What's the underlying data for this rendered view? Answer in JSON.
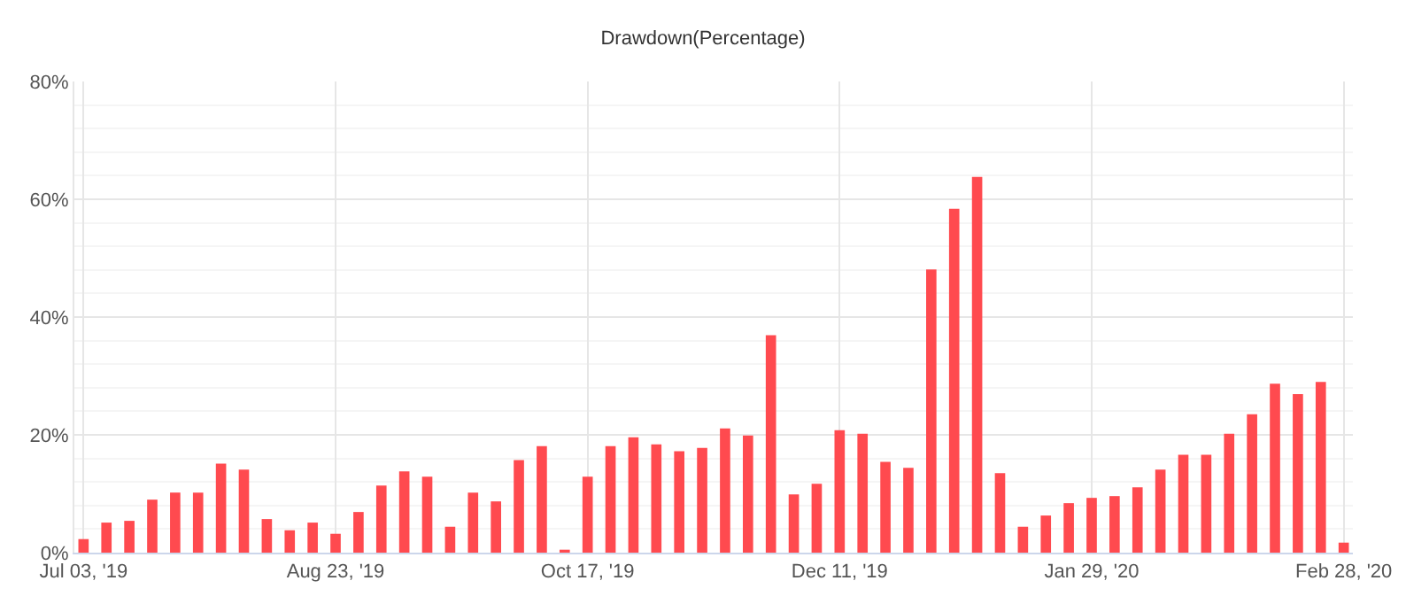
{
  "chart_data": {
    "type": "bar",
    "title": "Drawdown(Percentage)",
    "categories": [
      "Jul 03, '19",
      null,
      null,
      null,
      null,
      null,
      null,
      null,
      null,
      null,
      null,
      "Aug 23, '19",
      null,
      null,
      null,
      null,
      null,
      null,
      null,
      null,
      null,
      null,
      "Oct 17, '19",
      null,
      null,
      null,
      null,
      null,
      null,
      null,
      null,
      null,
      null,
      "Dec 11, '19",
      null,
      null,
      null,
      null,
      null,
      null,
      null,
      null,
      null,
      null,
      "Jan 29, '20",
      null,
      null,
      null,
      null,
      null,
      null,
      null,
      null,
      null,
      null,
      "Feb 28, '20"
    ],
    "values": [
      2.3,
      5.1,
      5.4,
      9.0,
      10.2,
      10.2,
      15.1,
      14.1,
      5.7,
      3.8,
      5.1,
      3.2,
      6.9,
      11.4,
      13.8,
      12.9,
      4.4,
      10.2,
      8.7,
      15.7,
      18.1,
      0.5,
      12.9,
      18.1,
      19.6,
      18.4,
      17.2,
      17.8,
      21.1,
      19.9,
      36.9,
      9.9,
      11.7,
      20.8,
      20.2,
      15.4,
      14.4,
      48.1,
      58.4,
      63.8,
      13.5,
      4.4,
      6.3,
      8.4,
      9.3,
      9.6,
      11.1,
      14.1,
      16.6,
      16.6,
      20.2,
      23.5,
      28.7,
      26.9,
      29.0,
      1.7
    ],
    "color": "#ff4a4f",
    "ylim": [
      0,
      80
    ],
    "yticks": [
      {
        "value": 0,
        "label": "0%"
      },
      {
        "value": 20,
        "label": "20%"
      },
      {
        "value": 40,
        "label": "40%"
      },
      {
        "value": 60,
        "label": "60%"
      },
      {
        "value": 80,
        "label": "80%"
      }
    ],
    "grid": true
  }
}
